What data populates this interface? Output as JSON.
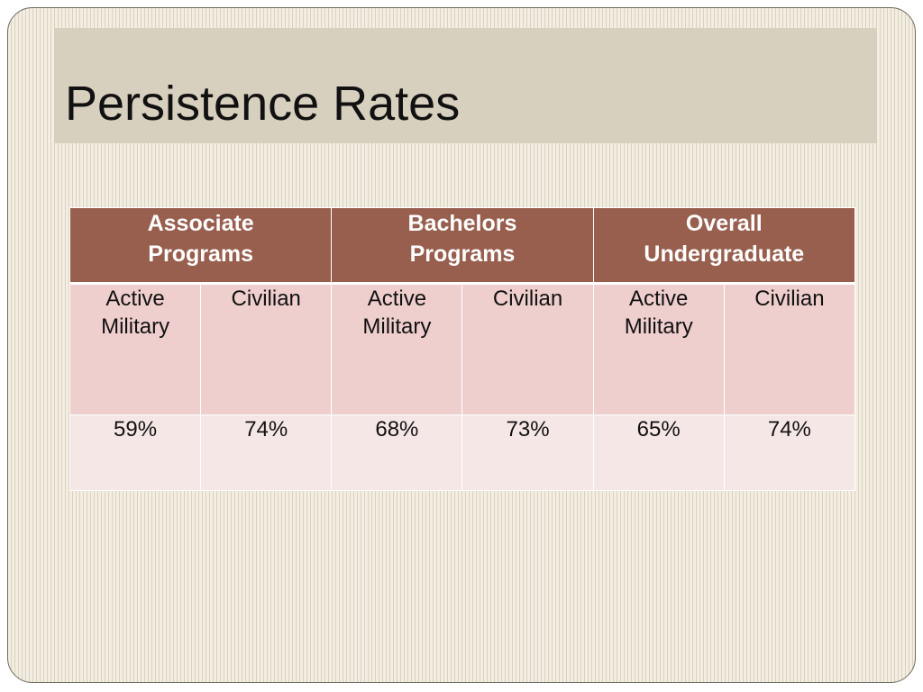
{
  "slide": {
    "title": "Persistence Rates"
  },
  "table": {
    "groups": [
      {
        "line1": "Associate",
        "line2": "Programs"
      },
      {
        "line1": "Bachelors",
        "line2": "Programs"
      },
      {
        "line1": "Overall",
        "line2": "Undergraduate"
      }
    ],
    "subheaders": [
      {
        "line1": "Active",
        "line2": "Military"
      },
      {
        "line1": "Civilian",
        "line2": ""
      },
      {
        "line1": "Active",
        "line2": "Military"
      },
      {
        "line1": "Civilian",
        "line2": ""
      },
      {
        "line1": "Active",
        "line2": "Military"
      },
      {
        "line1": "Civilian",
        "line2": ""
      }
    ],
    "values": [
      "59%",
      "74%",
      "68%",
      "73%",
      "65%",
      "74%"
    ]
  },
  "colors": {
    "header_bg": "#985f4f",
    "subheader_bg": "#efcfcd",
    "value_bg": "#f6e7e7",
    "title_bar_bg": "#d8d0bf",
    "slide_bg": "#f1ebdd"
  }
}
